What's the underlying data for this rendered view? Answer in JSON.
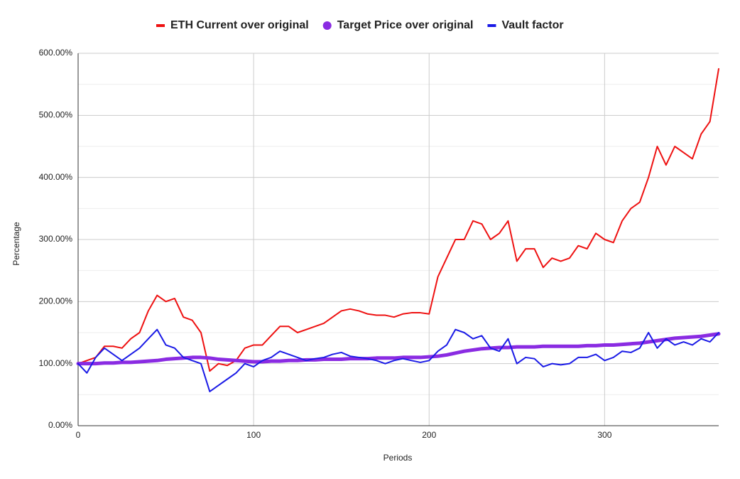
{
  "chart_data": {
    "type": "line",
    "x_label": "Periods",
    "y_label": "Percentage",
    "x": [
      0,
      5,
      10,
      15,
      20,
      25,
      30,
      35,
      40,
      45,
      50,
      55,
      60,
      65,
      70,
      75,
      80,
      85,
      90,
      95,
      100,
      105,
      110,
      115,
      120,
      125,
      130,
      135,
      140,
      145,
      150,
      155,
      160,
      165,
      170,
      175,
      180,
      185,
      190,
      195,
      200,
      205,
      210,
      215,
      220,
      225,
      230,
      235,
      240,
      245,
      250,
      255,
      260,
      265,
      270,
      275,
      280,
      285,
      290,
      295,
      300,
      305,
      310,
      315,
      320,
      325,
      330,
      335,
      340,
      345,
      350,
      355,
      360,
      365
    ],
    "series": [
      {
        "name": "ETH Current over original",
        "color": "#ee1111",
        "width": 2,
        "marker": "line",
        "values": [
          100,
          105,
          110,
          128,
          128,
          125,
          140,
          150,
          185,
          210,
          200,
          205,
          175,
          170,
          150,
          88,
          100,
          97,
          105,
          125,
          130,
          130,
          145,
          160,
          160,
          150,
          155,
          160,
          165,
          175,
          185,
          188,
          185,
          180,
          178,
          178,
          175,
          180,
          182,
          182,
          180,
          240,
          270,
          300,
          300,
          330,
          325,
          300,
          310,
          330,
          265,
          285,
          285,
          255,
          270,
          265,
          270,
          290,
          285,
          310,
          300,
          295,
          330,
          350,
          360,
          400,
          450,
          420,
          450,
          440,
          430,
          470,
          490,
          575
        ]
      },
      {
        "name": "Target Price over original",
        "color": "#8a2be2",
        "width": 5,
        "marker": "dot",
        "values": [
          100,
          100,
          100,
          101,
          101,
          102,
          102,
          103,
          104,
          105,
          107,
          108,
          109,
          110,
          110,
          109,
          107,
          106,
          105,
          104,
          103,
          103,
          104,
          104,
          105,
          105,
          106,
          106,
          107,
          107,
          107,
          108,
          108,
          108,
          109,
          109,
          109,
          110,
          110,
          110,
          111,
          112,
          114,
          117,
          120,
          122,
          124,
          125,
          126,
          126,
          127,
          127,
          127,
          128,
          128,
          128,
          128,
          128,
          129,
          129,
          130,
          130,
          131,
          132,
          133,
          135,
          137,
          139,
          141,
          142,
          143,
          144,
          146,
          148
        ]
      },
      {
        "name": "Vault factor",
        "color": "#1a1ae6",
        "width": 2,
        "marker": "line",
        "values": [
          100,
          85,
          110,
          125,
          115,
          105,
          115,
          125,
          140,
          155,
          130,
          125,
          110,
          105,
          100,
          55,
          65,
          75,
          85,
          100,
          95,
          105,
          110,
          120,
          115,
          110,
          105,
          108,
          110,
          115,
          118,
          112,
          110,
          108,
          105,
          100,
          105,
          108,
          105,
          102,
          105,
          120,
          130,
          155,
          150,
          140,
          145,
          125,
          120,
          140,
          100,
          110,
          108,
          95,
          100,
          98,
          100,
          110,
          110,
          115,
          105,
          110,
          120,
          118,
          125,
          150,
          125,
          140,
          130,
          135,
          130,
          140,
          135,
          150
        ]
      }
    ],
    "xlim": [
      0,
      365
    ],
    "xticks": [
      0,
      100,
      200,
      300
    ],
    "ylim": [
      0,
      600
    ],
    "yticks": [
      {
        "value": 0,
        "label": "0.00%"
      },
      {
        "value": 100,
        "label": "100.00%"
      },
      {
        "value": 200,
        "label": "200.00%"
      },
      {
        "value": 300,
        "label": "300.00%"
      },
      {
        "value": 400,
        "label": "400.00%"
      },
      {
        "value": 500,
        "label": "500.00%"
      },
      {
        "value": 600,
        "label": "600.00%"
      }
    ],
    "grid": true,
    "legend": "top"
  }
}
